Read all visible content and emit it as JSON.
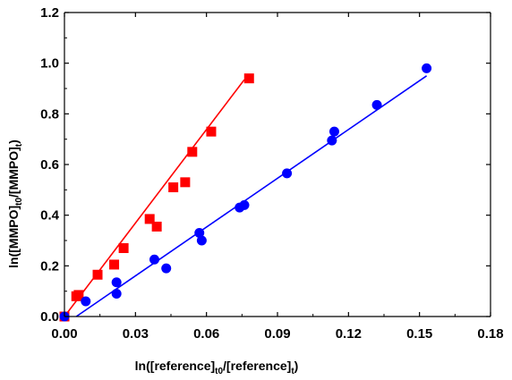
{
  "chart_data": {
    "type": "scatter",
    "xlabel": {
      "main": "ln([reference]",
      "sub1": "t0",
      "mid": "/[reference]",
      "sub2": "t",
      "end": ")"
    },
    "ylabel": {
      "main": "ln([MMPO]",
      "sub1": "t0",
      "mid": "/[MMPO]",
      "sub2": "t",
      "end": ")"
    },
    "xlim": [
      0,
      0.18
    ],
    "ylim": [
      0,
      1.2
    ],
    "xticks": [
      0,
      0.03,
      0.06,
      0.09,
      0.12,
      0.15,
      0.18
    ],
    "xtick_labels": [
      "0.00",
      "0.03",
      "0.06",
      "0.09",
      "0.12",
      "0.15",
      "0.18"
    ],
    "yticks": [
      0,
      0.2,
      0.4,
      0.6,
      0.8,
      1.0,
      1.2
    ],
    "ytick_labels": [
      "0.0",
      "0.2",
      "0.4",
      "0.6",
      "0.8",
      "1.0",
      "1.2"
    ],
    "grid": false,
    "series": [
      {
        "marker": "square",
        "color": "#ff0000",
        "line_color": "#ff0000",
        "points": [
          [
            0.0,
            0.0
          ],
          [
            0.005,
            0.08
          ],
          [
            0.006,
            0.085
          ],
          [
            0.014,
            0.165
          ],
          [
            0.021,
            0.205
          ],
          [
            0.025,
            0.27
          ],
          [
            0.036,
            0.385
          ],
          [
            0.039,
            0.355
          ],
          [
            0.046,
            0.51
          ],
          [
            0.051,
            0.53
          ],
          [
            0.054,
            0.65
          ],
          [
            0.062,
            0.73
          ],
          [
            0.078,
            0.94
          ]
        ],
        "fit": [
          [
            0.0,
            0.0
          ],
          [
            0.076,
            0.935
          ]
        ]
      },
      {
        "marker": "circle",
        "color": "#0000ff",
        "line_color": "#0000ff",
        "points": [
          [
            0.0,
            0.0
          ],
          [
            0.009,
            0.06
          ],
          [
            0.022,
            0.135
          ],
          [
            0.022,
            0.09
          ],
          [
            0.038,
            0.225
          ],
          [
            0.043,
            0.19
          ],
          [
            0.057,
            0.33
          ],
          [
            0.058,
            0.3
          ],
          [
            0.074,
            0.43
          ],
          [
            0.076,
            0.44
          ],
          [
            0.094,
            0.565
          ],
          [
            0.113,
            0.695
          ],
          [
            0.114,
            0.73
          ],
          [
            0.132,
            0.835
          ],
          [
            0.153,
            0.98
          ]
        ],
        "fit": [
          [
            0.005,
            0.0
          ],
          [
            0.153,
            0.95
          ]
        ]
      }
    ]
  }
}
